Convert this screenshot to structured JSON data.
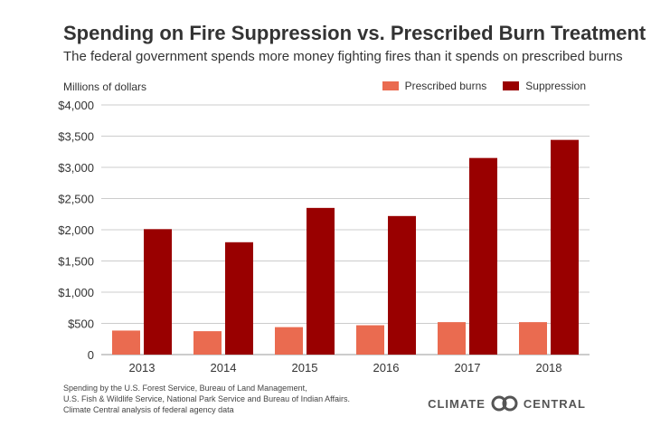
{
  "colors": {
    "prescribed": "#ea6b50",
    "suppression": "#990000",
    "grid": "#cccccc"
  },
  "title": "Spending on Fire Suppression vs. Prescribed Burn Treatment",
  "subtitle": "The federal government spends more money fighting fires than it spends on prescribed burns",
  "footnote": [
    "Spending by the U.S. Forest Service, Bureau of Land Management,",
    "U.S. Fish & Wildlife Service, National Park Service and Bureau of Indian Affairs.",
    "Climate Central analysis of federal agency data"
  ],
  "logo": {
    "left": "CLIMATE",
    "right": "CENTRAL",
    "icon": "linked-circles-logo-icon"
  },
  "chart_data": {
    "type": "bar",
    "ylabel": "Millions of dollars",
    "categories": [
      "2013",
      "2014",
      "2015",
      "2016",
      "2017",
      "2018"
    ],
    "series": [
      {
        "name": "Prescribed burns",
        "values": [
          385,
          375,
          440,
          470,
          520,
          520
        ]
      },
      {
        "name": "Suppression",
        "values": [
          2010,
          1800,
          2350,
          2220,
          3150,
          3440
        ]
      }
    ],
    "ylim": [
      0,
      4000
    ],
    "yticks": [
      0,
      500,
      1000,
      1500,
      2000,
      2500,
      3000,
      3500,
      4000
    ],
    "ytick_labels": [
      "0",
      "$500",
      "$1,000",
      "$1,500",
      "$2,000",
      "$2,500",
      "$3,000",
      "$3,500",
      "$4,000"
    ],
    "grid": true,
    "legend_position": "top-right"
  }
}
